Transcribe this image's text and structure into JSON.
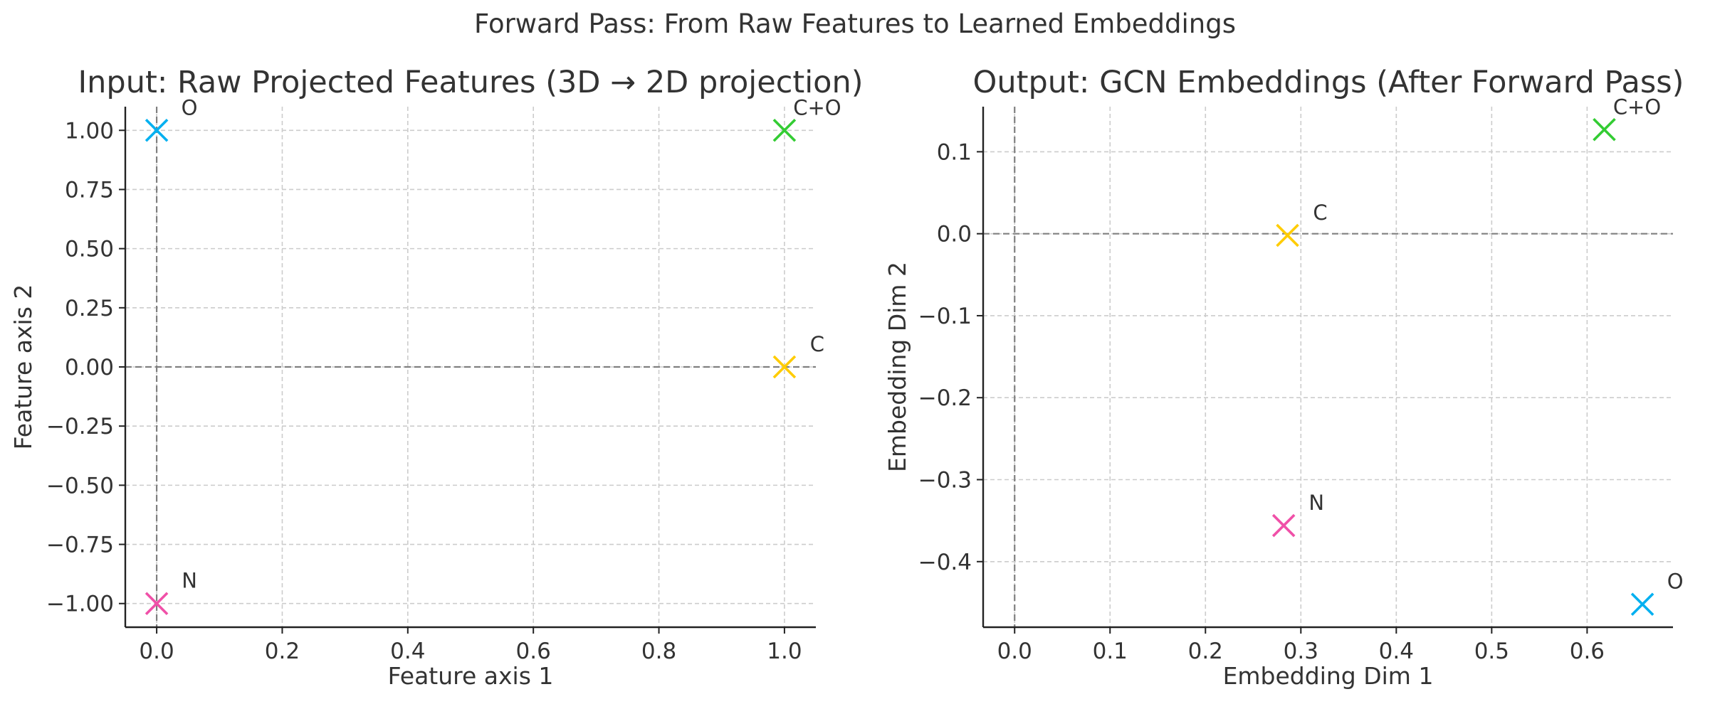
{
  "suptitle": "Forward Pass: From Raw Features to Learned Embeddings",
  "colors": {
    "text": "#333333",
    "grid": "#cccccc",
    "ref_line": "#808080",
    "C": "#ffcc00",
    "O": "#00b0f0",
    "N": "#f050a8",
    "C+O": "#33cc33"
  },
  "chart_data": [
    {
      "type": "scatter",
      "title": "Input: Raw Projected Features (3D → 2D projection)",
      "xlabel": "Feature axis 1",
      "ylabel": "Feature axis 2",
      "xlim": [
        -0.05,
        1.05
      ],
      "ylim": [
        -1.1,
        1.1
      ],
      "xticks": [
        0.0,
        0.2,
        0.4,
        0.6,
        0.8,
        1.0
      ],
      "xtick_labels": [
        "0.0",
        "0.2",
        "0.4",
        "0.6",
        "0.8",
        "1.0"
      ],
      "yticks": [
        1.0,
        0.75,
        0.5,
        0.25,
        0.0,
        -0.25,
        -0.5,
        -0.75,
        -1.0
      ],
      "ytick_labels": [
        "1.00",
        "0.75",
        "0.50",
        "0.25",
        "0.00",
        "−0.25",
        "−0.50",
        "−0.75",
        "−1.00"
      ],
      "grid": true,
      "marker": "x",
      "ref_lines": {
        "x": 0,
        "y": 0
      },
      "points": [
        {
          "label": "O",
          "x": 0.0,
          "y": 1.0
        },
        {
          "label": "C+O",
          "x": 1.0,
          "y": 1.0
        },
        {
          "label": "C",
          "x": 1.0,
          "y": 0.0
        },
        {
          "label": "N",
          "x": 0.0,
          "y": -1.0
        }
      ]
    },
    {
      "type": "scatter",
      "title": "Output: GCN Embeddings (After Forward Pass)",
      "xlabel": "Embedding Dim 1",
      "ylabel": "Embedding Dim 2",
      "xlim": [
        -0.033,
        0.69
      ],
      "ylim": [
        -0.48,
        0.155
      ],
      "xticks": [
        0.0,
        0.1,
        0.2,
        0.3,
        0.4,
        0.5,
        0.6
      ],
      "xtick_labels": [
        "0.0",
        "0.1",
        "0.2",
        "0.3",
        "0.4",
        "0.5",
        "0.6"
      ],
      "yticks": [
        0.1,
        0.0,
        -0.1,
        -0.2,
        -0.3,
        -0.4
      ],
      "ytick_labels": [
        "0.1",
        "0.0",
        "−0.1",
        "−0.2",
        "−0.3",
        "−0.4"
      ],
      "grid": true,
      "marker": "x",
      "ref_lines": {
        "x": 0,
        "y": 0
      },
      "points": [
        {
          "label": "C+O",
          "x": 0.618,
          "y": 0.127
        },
        {
          "label": "C",
          "x": 0.286,
          "y": -0.002
        },
        {
          "label": "N",
          "x": 0.282,
          "y": -0.356
        },
        {
          "label": "O",
          "x": 0.658,
          "y": -0.452
        }
      ]
    }
  ]
}
